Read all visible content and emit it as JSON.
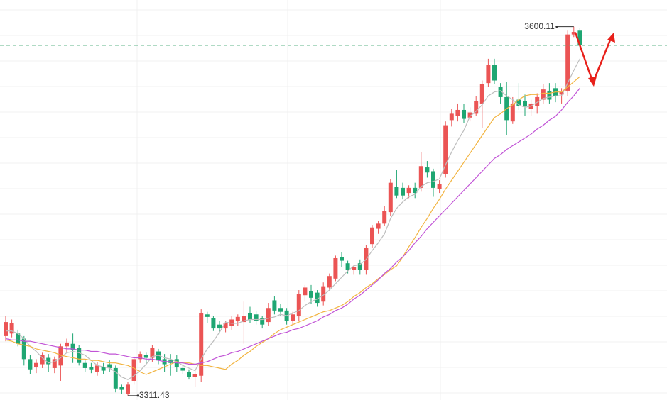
{
  "chart_data": {
    "type": "candlestick",
    "ylim": [
      3308,
      3621
    ],
    "up_color": "#eb5454",
    "down_color": "#1ea672",
    "last_line_color": "#5fb58a",
    "open": [
      3358,
      3360,
      3360,
      3356,
      3340,
      3334,
      3336,
      3341,
      3333,
      3335,
      3350,
      3352,
      3349,
      3337,
      3334,
      3330,
      3334,
      3336,
      3333,
      3318,
      3313,
      3323,
      3340,
      3343,
      3341,
      3346,
      3340,
      3339,
      3340,
      3333,
      3330,
      3326,
      3327,
      3375,
      3372,
      3367,
      3364,
      3366,
      3370,
      3369,
      3376,
      3375,
      3372,
      3369,
      3386,
      3380,
      3378,
      3370,
      3374,
      3390,
      3393,
      3392,
      3385,
      3396,
      3403,
      3420,
      3415,
      3410,
      3415,
      3410,
      3430,
      3442,
      3446,
      3455,
      3475,
      3474,
      3470,
      3474,
      3474,
      3490,
      3487,
      3473,
      3485,
      3527,
      3530,
      3535,
      3529,
      3532,
      3540,
      3556,
      3570,
      3553,
      3545,
      3526,
      3543,
      3542,
      3536,
      3538,
      3543,
      3550,
      3552,
      3547,
      3550,
      3594,
      3597
    ],
    "high": [
      3374,
      3371,
      3363,
      3358,
      3343,
      3340,
      3345,
      3344,
      3342,
      3352,
      3356,
      3360,
      3351,
      3339,
      3337,
      3338,
      3337,
      3339,
      3335,
      3320,
      3322,
      3342,
      3346,
      3345,
      3351,
      3348,
      3344,
      3344,
      3343,
      3336,
      3332,
      3331,
      3379,
      3377,
      3374,
      3370,
      3370,
      3374,
      3375,
      3385,
      3381,
      3378,
      3374,
      3384,
      3389,
      3383,
      3380,
      3377,
      3394,
      3398,
      3398,
      3394,
      3400,
      3407,
      3421,
      3424,
      3417,
      3414,
      3418,
      3429,
      3445,
      3448,
      3460,
      3481,
      3488,
      3478,
      3476,
      3478,
      3502,
      3495,
      3489,
      3480,
      3526,
      3536,
      3540,
      3540,
      3537,
      3546,
      3558,
      3575,
      3575,
      3556,
      3557,
      3545,
      3556,
      3547,
      3543,
      3548,
      3555,
      3556,
      3556,
      3552,
      3597,
      3600.11,
      3599
    ],
    "low": [
      3354,
      3357,
      3350,
      3335,
      3328,
      3329,
      3333,
      3330,
      3329,
      3323,
      3345,
      3337,
      3335,
      3330,
      3329,
      3327,
      3328,
      3330,
      3314,
      3313,
      3311.43,
      3320,
      3337,
      3336,
      3338,
      3336,
      3330,
      3327,
      3330,
      3328,
      3324,
      3318,
      3322,
      3368,
      3362,
      3360,
      3361,
      3363,
      3366,
      3352,
      3368,
      3367,
      3364,
      3366,
      3375,
      3374,
      3367,
      3367,
      3370,
      3385,
      3383,
      3381,
      3382,
      3393,
      3401,
      3412,
      3407,
      3406,
      3406,
      3406,
      3427,
      3438,
      3444,
      3452,
      3466,
      3465,
      3466,
      3466,
      3471,
      3482,
      3467,
      3470,
      3482,
      3522,
      3526,
      3525,
      3526,
      3530,
      3521,
      3553,
      3555,
      3540,
      3515,
      3524,
      3535,
      3530,
      3530,
      3532,
      3540,
      3540,
      3541,
      3540,
      3546,
      3592,
      3583
    ],
    "close": [
      3369,
      3368,
      3352,
      3340,
      3332,
      3337,
      3343,
      3336,
      3340,
      3350,
      3353,
      3347,
      3337,
      3333,
      3332,
      3335,
      3331,
      3333,
      3317,
      3316,
      3320,
      3340,
      3344,
      3341,
      3349,
      3339,
      3336,
      3337,
      3334,
      3331,
      3326,
      3328,
      3376,
      3373,
      3364,
      3364,
      3368,
      3371,
      3373,
      3374,
      3371,
      3370,
      3367,
      3380,
      3378,
      3377,
      3370,
      3375,
      3391,
      3396,
      3388,
      3384,
      3397,
      3405,
      3419,
      3417,
      3410,
      3412,
      3410,
      3427,
      3443,
      3446,
      3456,
      3478,
      3468,
      3468,
      3474,
      3470,
      3491,
      3486,
      3474,
      3477,
      3523,
      3532,
      3535,
      3528,
      3533,
      3542,
      3555,
      3570,
      3558,
      3545,
      3527,
      3540,
      3538,
      3538,
      3540,
      3545,
      3551,
      3543,
      3546,
      3549,
      3594,
      3596,
      3585.5
    ],
    "series": [
      {
        "color": "#bdbdbd",
        "values": [
          3362,
          3362,
          3360,
          3356,
          3350,
          3346,
          3341,
          3337,
          3338,
          3341,
          3345,
          3346,
          3345,
          3343,
          3339,
          3335,
          3334,
          3333,
          3330,
          3326,
          3324,
          3327,
          3331,
          3336,
          3342,
          3343,
          3341,
          3340,
          3338,
          3335,
          3333,
          3331,
          3340,
          3348,
          3354,
          3361,
          3369,
          3368,
          3368,
          3370,
          3371,
          3371,
          3371,
          3372,
          3373,
          3375,
          3374,
          3376,
          3378,
          3382,
          3385,
          3387,
          3390,
          3394,
          3399,
          3404,
          3409,
          3413,
          3414,
          3418,
          3425,
          3431,
          3438,
          3450,
          3458,
          3463,
          3467,
          3469,
          3475,
          3478,
          3479,
          3481,
          3492,
          3502,
          3511,
          3519,
          3530,
          3534,
          3539,
          3546,
          3549,
          3550,
          3546,
          3543,
          3539,
          3537,
          3538,
          3541,
          3544,
          3545,
          3546,
          3546,
          3556,
          3566,
          3575
        ]
      },
      {
        "color": "#f2b440",
        "values": [
          3355,
          3354,
          3352,
          3351,
          3350,
          3348,
          3347,
          3346,
          3345,
          3343,
          3342,
          3341,
          3340,
          3340,
          3339,
          3339,
          3338,
          3337,
          3337,
          3336,
          3335,
          3333,
          3330,
          3328,
          3330,
          3332,
          3334,
          3336,
          3338,
          3337,
          3337,
          3336,
          3335,
          3335,
          3334,
          3333,
          3332,
          3336,
          3339,
          3343,
          3346,
          3350,
          3353,
          3356,
          3360,
          3363,
          3365,
          3367,
          3369,
          3371,
          3373,
          3375,
          3377,
          3378,
          3380,
          3382,
          3385,
          3389,
          3392,
          3396,
          3399,
          3403,
          3406,
          3410,
          3413,
          3420,
          3428,
          3435,
          3443,
          3450,
          3458,
          3465,
          3473,
          3480,
          3487,
          3494,
          3501,
          3508,
          3515,
          3522,
          3529,
          3532,
          3536,
          3539,
          3543,
          3546,
          3547,
          3547,
          3548,
          3548,
          3549,
          3549,
          3553,
          3557,
          3561
        ]
      },
      {
        "color": "#c153d6",
        "values": [
          3356,
          3355,
          3355,
          3354,
          3354,
          3353,
          3352,
          3351,
          3350,
          3349,
          3348,
          3348,
          3347,
          3347,
          3346,
          3346,
          3345,
          3344,
          3344,
          3343,
          3342,
          3341,
          3341,
          3340,
          3340,
          3339,
          3338,
          3338,
          3337,
          3337,
          3336,
          3336,
          3337,
          3338,
          3340,
          3342,
          3343,
          3345,
          3346,
          3348,
          3350,
          3352,
          3354,
          3356,
          3358,
          3360,
          3361,
          3363,
          3364,
          3366,
          3368,
          3370,
          3373,
          3375,
          3378,
          3380,
          3383,
          3387,
          3390,
          3394,
          3398,
          3402,
          3407,
          3411,
          3416,
          3420,
          3425,
          3431,
          3436,
          3442,
          3447,
          3452,
          3457,
          3462,
          3467,
          3472,
          3477,
          3482,
          3487,
          3492,
          3497,
          3500,
          3504,
          3507,
          3510,
          3513,
          3516,
          3520,
          3523,
          3527,
          3530,
          3535,
          3541,
          3546,
          3552
        ]
      }
    ],
    "max_price": 3600.11,
    "min_price": 3311.43
  }
}
